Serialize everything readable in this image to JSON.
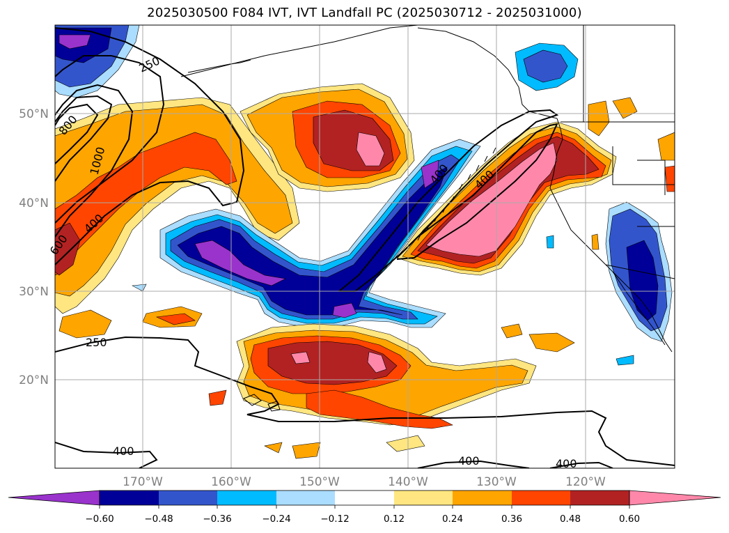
{
  "title": "2025030500 F084 IVT, IVT Landfall PC (2025030712 - 2025031000)",
  "map": {
    "lat_labels": [
      "50°N",
      "40°N",
      "30°N",
      "20°N"
    ],
    "lon_labels": [
      "170°W",
      "160°W",
      "150°W",
      "140°W",
      "130°W",
      "120°W"
    ],
    "contour_labels": [
      "250",
      "800",
      "1000",
      "400",
      "600",
      "400",
      "400",
      "250",
      "400",
      "400",
      "400"
    ]
  },
  "colorbar": {
    "ticks": [
      "−0.60",
      "−0.48",
      "−0.36",
      "−0.24",
      "−0.12",
      "0.12",
      "0.24",
      "0.36",
      "0.48",
      "0.60"
    ],
    "colors": [
      "#9933cc",
      "#000099",
      "#3355cc",
      "#00bbff",
      "#aaddff",
      "#ffffff",
      "#ffe680",
      "#ffa500",
      "#ff4500",
      "#b22222",
      "#ff88aa"
    ]
  },
  "colors": {
    "pink": "#ff88aa",
    "darkred": "#b22222",
    "orangered": "#ff4500",
    "orange": "#ffa500",
    "lightyellow": "#ffe680",
    "lightblue": "#aaddff",
    "skyblue": "#00bbff",
    "royal": "#3355cc",
    "navy": "#000099",
    "purple": "#9933cc"
  }
}
